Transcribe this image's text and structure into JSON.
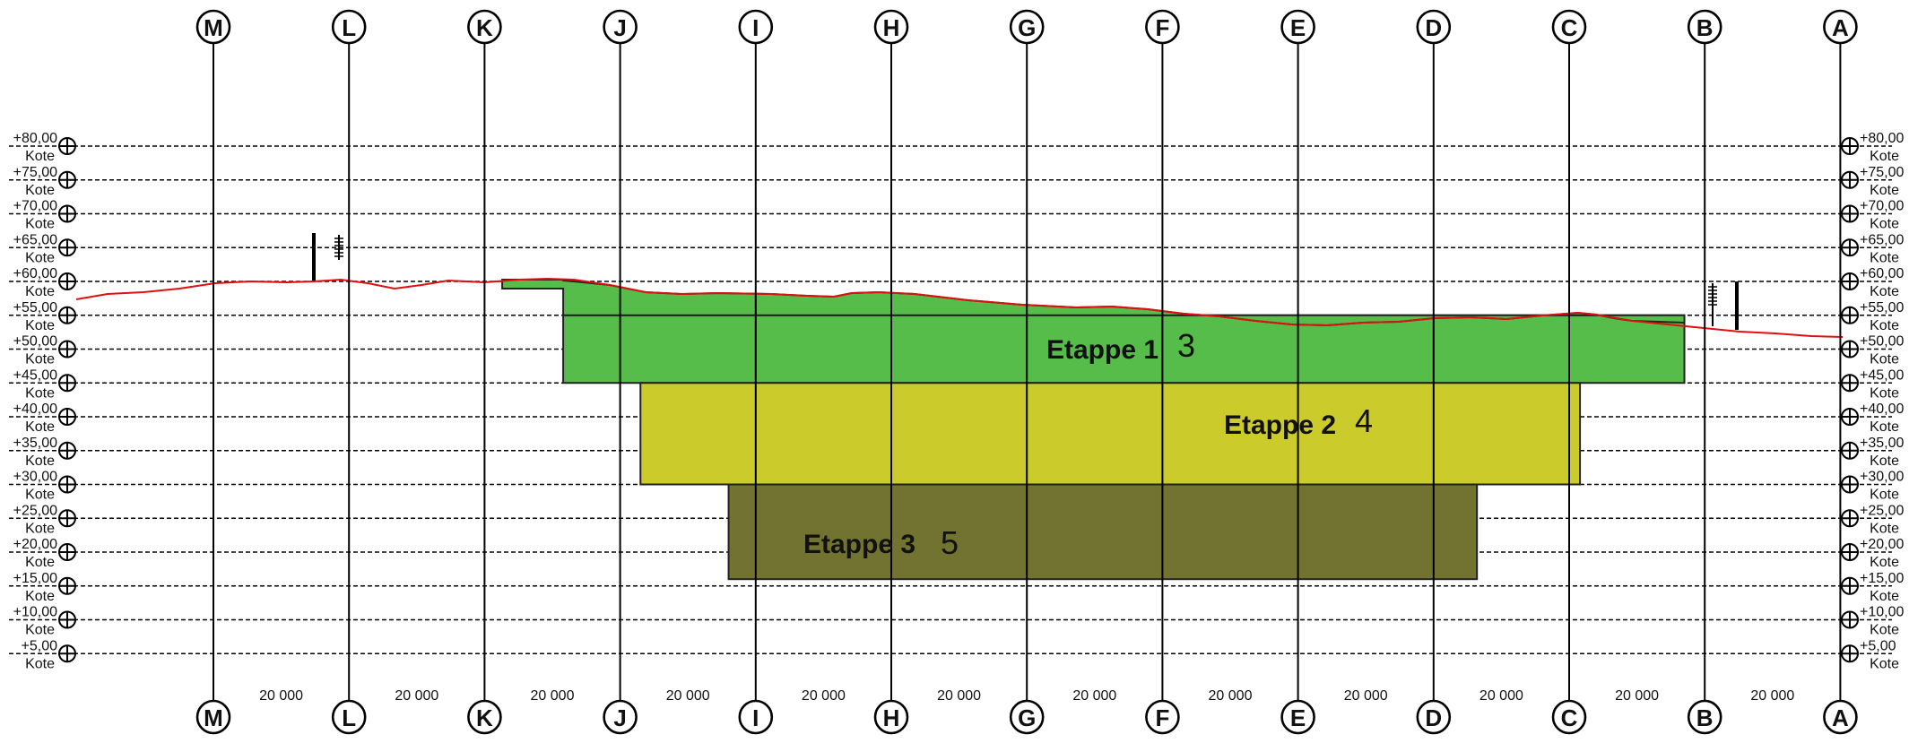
{
  "diagram": {
    "axes": [
      "M",
      "L",
      "K",
      "J",
      "I",
      "H",
      "G",
      "F",
      "E",
      "D",
      "C",
      "B",
      "A"
    ],
    "span_label": "20 000",
    "levels": [
      {
        "value": "+80,00",
        "name": "Kote"
      },
      {
        "value": "+75,00",
        "name": "Kote"
      },
      {
        "value": "+70,00",
        "name": "Kote"
      },
      {
        "value": "+65,00",
        "name": "Kote"
      },
      {
        "value": "+60,00",
        "name": "Kote"
      },
      {
        "value": "+55,00",
        "name": "Kote"
      },
      {
        "value": "+50,00",
        "name": "Kote"
      },
      {
        "value": "+45,00",
        "name": "Kote"
      },
      {
        "value": "+40,00",
        "name": "Kote"
      },
      {
        "value": "+35,00",
        "name": "Kote"
      },
      {
        "value": "+30,00",
        "name": "Kote"
      },
      {
        "value": "+25,00",
        "name": "Kote"
      },
      {
        "value": "+20,00",
        "name": "Kote"
      },
      {
        "value": "+15,00",
        "name": "Kote"
      },
      {
        "value": "+10,00",
        "name": "Kote"
      },
      {
        "value": "+5,00",
        "name": "Kote"
      }
    ],
    "stages": [
      {
        "label": "Etappe 1",
        "overlay": "3",
        "color": "#57bd4a",
        "elev_top": 55,
        "elev_bottom": 45,
        "from_axis": 2.58,
        "to_axis": 10.85
      },
      {
        "label": "Etappe 2",
        "overlay": "4",
        "color": "#cbcb2c",
        "elev_top": 45,
        "elev_bottom": 30,
        "from_axis": 3.15,
        "to_axis": 10.08
      },
      {
        "label": "Etappe 3",
        "overlay": "5",
        "color": "#727331",
        "elev_top": 30,
        "elev_bottom": 16,
        "from_axis": 3.8,
        "to_axis": 9.32
      }
    ],
    "colors": {
      "terrain": "#e01010",
      "stage_1": "#57bd4a",
      "stage_2": "#cbcb2c",
      "stage_3": "#727331"
    }
  }
}
